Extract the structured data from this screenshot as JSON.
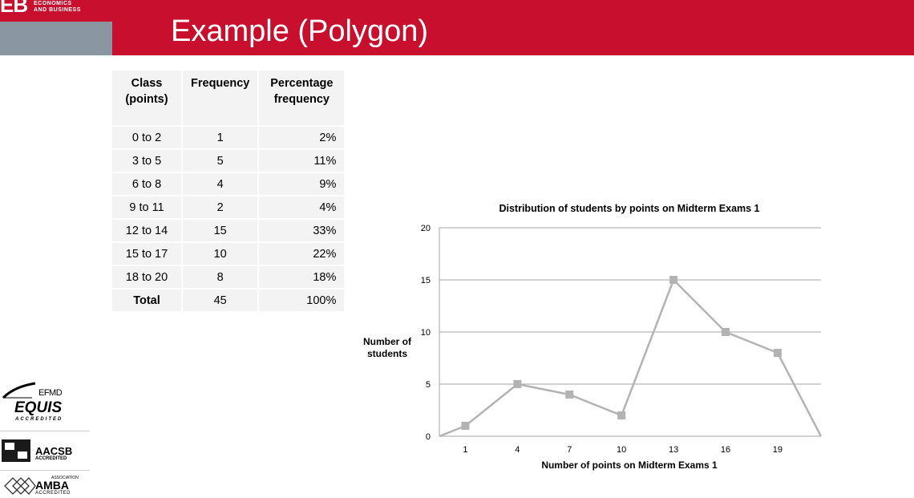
{
  "header": {
    "logo_mark": "EB",
    "logo_line1": "ECONOMICS",
    "logo_line2": "AND BUSINESS",
    "title": "Example (Polygon)"
  },
  "table": {
    "headers": [
      "Class (points)",
      "Frequency",
      "Percentage frequency"
    ],
    "rows": [
      [
        "0 to 2",
        "1",
        "2%"
      ],
      [
        "3 to 5",
        "5",
        "11%"
      ],
      [
        "6 to 8",
        "4",
        "9%"
      ],
      [
        "9 to 11",
        "2",
        "4%"
      ],
      [
        "12 to 14",
        "15",
        "33%"
      ],
      [
        "15 to 17",
        "10",
        "22%"
      ],
      [
        "18 to 20",
        "8",
        "18%"
      ]
    ],
    "total": [
      "Total",
      "45",
      "100%"
    ]
  },
  "accreditations": {
    "equis_top": "EFMD",
    "equis_main": "EQUIS",
    "equis_sub": "ACCREDITED",
    "aacsb_main": "AACSB",
    "aacsb_sub": "ACCREDITED",
    "amba_top": "ASSOCIATION",
    "amba_main": "AMBA",
    "amba_sub": "ACCREDITED"
  },
  "chart_data": {
    "type": "line",
    "title": "Distribution of students by points on Midterm Exams 1",
    "xlabel": "Number of points on Midterm Exams 1",
    "ylabel": "Number of students",
    "ylim": [
      0,
      20
    ],
    "yticks": [
      0,
      5,
      10,
      15,
      20
    ],
    "x_tick_labels": [
      "1",
      "4",
      "7",
      "10",
      "13",
      "16",
      "19"
    ],
    "x_range": [
      -0.5,
      21.5
    ],
    "series": [
      {
        "name": "",
        "x": [
          -0.5,
          1,
          4,
          7,
          10,
          13,
          16,
          19,
          21.5
        ],
        "y": [
          0,
          1,
          5,
          4,
          2,
          15,
          10,
          8,
          0
        ],
        "marker_x": [
          1,
          4,
          7,
          10,
          13,
          16,
          19
        ],
        "marker_y": [
          1,
          5,
          4,
          2,
          15,
          10,
          8
        ]
      }
    ],
    "grid": true,
    "legend": "none",
    "line_color": "#b3b3b3",
    "grid_color": "#a6a6a6"
  },
  "colors": {
    "brand_red": "#c8102e",
    "brand_grey": "#8a97a3"
  }
}
